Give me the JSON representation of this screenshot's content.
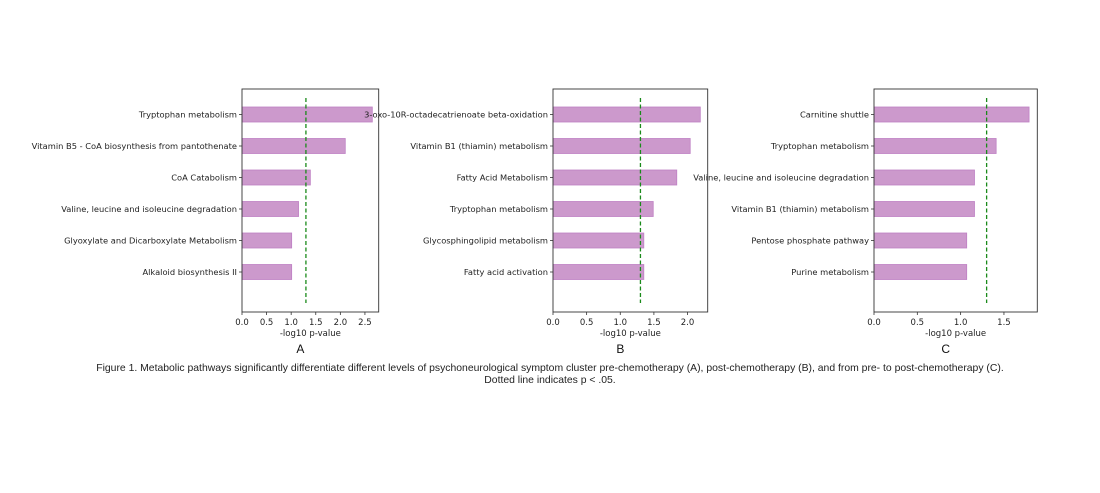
{
  "chart_data": [
    {
      "type": "bar",
      "orientation": "horizontal",
      "panel_label": "A",
      "categories": [
        "Tryptophan metabolism",
        "Vitamin B5 - CoA biosynthesis from pantothenate",
        "CoA Catabolism",
        "Valine, leucine and isoleucine degradation",
        "Glyoxylate and Dicarboxylate Metabolism",
        "Alkaloid biosynthesis II"
      ],
      "values": [
        2.65,
        2.1,
        1.39,
        1.15,
        1.01,
        1.01
      ],
      "xlabel": "-log10 p-value",
      "xlim": [
        0,
        2.78
      ],
      "xticks": [
        "0.0",
        "0.5",
        "1.0",
        "1.5",
        "2.0",
        "2.5"
      ],
      "threshold": 1.3
    },
    {
      "type": "bar",
      "orientation": "horizontal",
      "panel_label": "B",
      "categories": [
        "3-oxo-10R-octadecatrienoate beta-oxidation",
        "Vitamin B1 (thiamin) metabolism",
        "Fatty Acid Metabolism",
        "Tryptophan metabolism",
        "Glycosphingolipid metabolism",
        "Fatty acid activation"
      ],
      "values": [
        2.19,
        2.04,
        1.84,
        1.49,
        1.35,
        1.35
      ],
      "xlabel": "-log10 p-value",
      "xlim": [
        0,
        2.3
      ],
      "xticks": [
        "0.0",
        "0.5",
        "1.0",
        "1.5",
        "2.0"
      ],
      "threshold": 1.3
    },
    {
      "type": "bar",
      "orientation": "horizontal",
      "panel_label": "C",
      "categories": [
        "Carnitine shuttle",
        "Tryptophan metabolism",
        "Valine, leucine and isoleucine degradation",
        "Vitamin B1 (thiamin) metabolism",
        "Pentose phosphate pathway",
        "Purine metabolism"
      ],
      "values": [
        1.79,
        1.41,
        1.16,
        1.16,
        1.07,
        1.07
      ],
      "xlabel": "-log10 p-value",
      "xlim": [
        0,
        1.885
      ],
      "xticks": [
        "0.0",
        "0.5",
        "1.0",
        "1.5"
      ],
      "threshold": 1.3
    }
  ],
  "colors": {
    "bar_fill": "#cc99cc",
    "bar_edge": "#bf80c4",
    "threshold": "#1a8a1a",
    "axis": "#333333"
  },
  "caption": {
    "line1": "Figure 1. Metabolic pathways significantly differentiate different levels of psychoneurological symptom cluster pre-chemotherapy (A), post-chemotherapy (B), and from pre- to post-chemotherapy (C).",
    "line2": "Dotted line indicates p < .05."
  }
}
